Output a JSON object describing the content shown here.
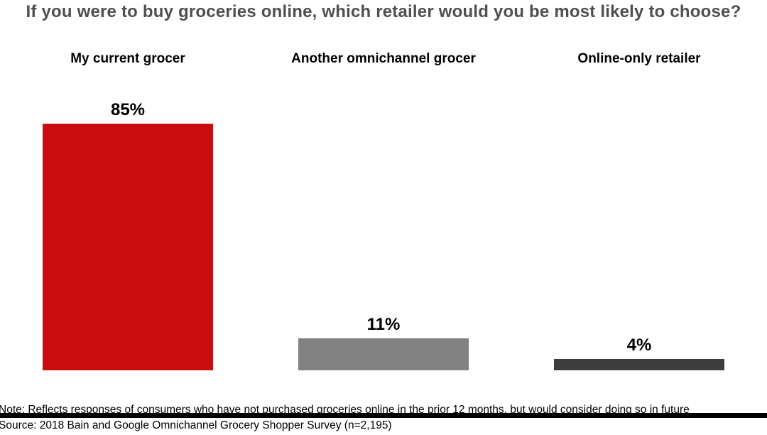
{
  "title": "If you were to buy groceries online, which retailer would you be most likely to choose?",
  "chart_data": {
    "type": "bar",
    "orientation": "vertical",
    "categories": [
      "My current grocer",
      "Another omnichannel grocer",
      "Online-only retailer"
    ],
    "values": [
      85,
      11,
      4
    ],
    "value_labels": [
      "85%",
      "11%",
      "4%"
    ],
    "bar_colors": [
      "#c90d0e",
      "#828282",
      "#3d3d3d"
    ],
    "title": "If you were to buy groceries online, which retailer would you be most likely to choose?",
    "xlabel": "",
    "ylabel": "",
    "ylim": [
      0,
      100
    ],
    "grid": false,
    "legend_position": "none",
    "axis_line_color": "#000000",
    "title_color": "#4f4f4f"
  },
  "footer": {
    "note": "Note: Reflects responses of consumers who have not purchased groceries online in the prior 12 months, but would consider doing so in future",
    "source": "Source: 2018 Bain and Google Omnichannel Grocery Shopper Survey (n=2,195)"
  }
}
